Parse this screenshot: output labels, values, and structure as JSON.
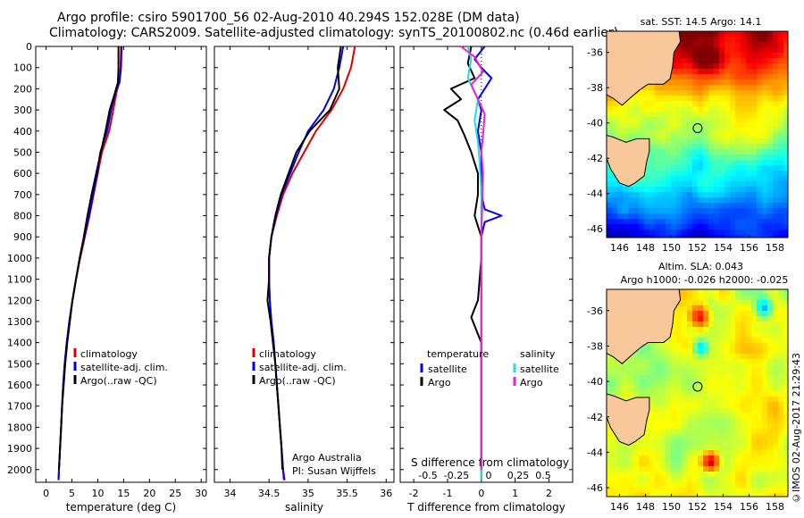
{
  "header": {
    "line1": "Argo profile: csiro 5901700_56 02-Aug-2010 40.294S 152.028E (DM data)",
    "line2": "Climatology: CARS2009. Satellite-adjusted climatology: synTS_20100802.nc (0.46d earlier)"
  },
  "credit": "©IMOS 02-Aug-2017 21:29:43",
  "colors": {
    "climatology": "#dd0000",
    "satellite": "#0000ee",
    "argo": "#000000",
    "sal_satellite": "#22dddd",
    "sal_argo": "#ee22cc",
    "land": "#f9c89a"
  },
  "chart_data": [
    {
      "type": "line",
      "id": "temperature",
      "xlabel": "temperature (deg C)",
      "xlim": [
        -2,
        31
      ],
      "xticks": [
        0,
        5,
        10,
        15,
        20,
        25,
        30
      ],
      "ylim": [
        2060,
        0
      ],
      "yticks": [
        0,
        100,
        200,
        300,
        400,
        500,
        600,
        700,
        800,
        900,
        1000,
        1100,
        1200,
        1300,
        1400,
        1500,
        1600,
        1700,
        1800,
        1900,
        2000
      ],
      "legend": [
        "climatology",
        "satellite-adj. clim.",
        "Argo(..raw -QC)"
      ],
      "series": [
        {
          "name": "climatology",
          "color": "#dd0000",
          "points": [
            [
              14.5,
              0
            ],
            [
              14.4,
              100
            ],
            [
              14.1,
              170
            ],
            [
              13.6,
              220
            ],
            [
              13.0,
              300
            ],
            [
              12.2,
              400
            ],
            [
              10.8,
              500
            ],
            [
              10.0,
              600
            ],
            [
              9.2,
              700
            ],
            [
              8.4,
              800
            ],
            [
              7.5,
              900
            ],
            [
              6.6,
              1000
            ],
            [
              5.8,
              1100
            ],
            [
              5.1,
              1200
            ],
            [
              4.5,
              1300
            ],
            [
              4.0,
              1400
            ],
            [
              3.6,
              1500
            ],
            [
              3.3,
              1600
            ],
            [
              3.1,
              1700
            ],
            [
              2.9,
              1800
            ],
            [
              2.7,
              1900
            ],
            [
              2.5,
              2000
            ],
            [
              2.4,
              2050
            ]
          ]
        },
        {
          "name": "satellite-adj. clim.",
          "color": "#0000ee",
          "points": [
            [
              14.6,
              0
            ],
            [
              14.5,
              100
            ],
            [
              14.2,
              170
            ],
            [
              13.4,
              220
            ],
            [
              12.6,
              300
            ],
            [
              11.8,
              400
            ],
            [
              10.5,
              500
            ],
            [
              9.9,
              600
            ],
            [
              9.1,
              700
            ],
            [
              8.3,
              800
            ],
            [
              7.4,
              900
            ],
            [
              6.5,
              1000
            ],
            [
              5.8,
              1100
            ],
            [
              5.1,
              1200
            ],
            [
              4.5,
              1300
            ],
            [
              4.0,
              1400
            ],
            [
              3.6,
              1500
            ],
            [
              3.3,
              1600
            ],
            [
              3.1,
              1700
            ],
            [
              2.9,
              1800
            ],
            [
              2.7,
              1900
            ],
            [
              2.5,
              2000
            ],
            [
              2.4,
              2050
            ]
          ]
        },
        {
          "name": "Argo(..raw -QC)",
          "color": "#000000",
          "points": [
            [
              14.0,
              0
            ],
            [
              14.0,
              100
            ],
            [
              13.9,
              170
            ],
            [
              13.3,
              220
            ],
            [
              12.3,
              300
            ],
            [
              11.5,
              400
            ],
            [
              10.6,
              500
            ],
            [
              9.7,
              600
            ],
            [
              8.8,
              700
            ],
            [
              8.0,
              800
            ],
            [
              7.3,
              900
            ],
            [
              6.5,
              1000
            ],
            [
              5.8,
              1100
            ],
            [
              5.1,
              1200
            ],
            [
              4.6,
              1300
            ],
            [
              4.1,
              1400
            ],
            [
              3.7,
              1500
            ],
            [
              3.4,
              1600
            ],
            [
              3.1,
              1700
            ],
            [
              2.9,
              1800
            ],
            [
              2.7,
              1900
            ],
            [
              2.5,
              2000
            ]
          ]
        }
      ]
    },
    {
      "type": "line",
      "id": "salinity",
      "xlabel": "salinity",
      "xlim": [
        33.8,
        36.1
      ],
      "xticks": [
        34,
        34.5,
        35,
        35.5,
        36
      ],
      "ylim": [
        2060,
        0
      ],
      "legend": [
        "climatology",
        "satellite-adj. clim.",
        "Argo(..raw -QC)"
      ],
      "annotation": [
        "Argo Australia",
        "PI: Susan Wijffels"
      ],
      "series": [
        {
          "name": "climatology",
          "color": "#dd0000",
          "points": [
            [
              35.6,
              0
            ],
            [
              35.55,
              100
            ],
            [
              35.45,
              200
            ],
            [
              35.3,
              300
            ],
            [
              35.1,
              400
            ],
            [
              34.95,
              500
            ],
            [
              34.8,
              600
            ],
            [
              34.68,
              700
            ],
            [
              34.6,
              800
            ],
            [
              34.53,
              900
            ],
            [
              34.5,
              1000
            ],
            [
              34.5,
              1100
            ],
            [
              34.51,
              1200
            ],
            [
              34.53,
              1300
            ],
            [
              34.56,
              1400
            ],
            [
              34.58,
              1500
            ],
            [
              34.6,
              1600
            ],
            [
              34.62,
              1700
            ],
            [
              34.64,
              1800
            ],
            [
              34.66,
              1900
            ],
            [
              34.68,
              2000
            ],
            [
              34.7,
              2050
            ]
          ]
        },
        {
          "name": "satellite-adj. clim.",
          "color": "#0000ee",
          "points": [
            [
              35.45,
              0
            ],
            [
              35.4,
              100
            ],
            [
              35.33,
              200
            ],
            [
              35.2,
              300
            ],
            [
              35.0,
              400
            ],
            [
              34.88,
              500
            ],
            [
              34.77,
              600
            ],
            [
              34.66,
              700
            ],
            [
              34.59,
              800
            ],
            [
              34.53,
              900
            ],
            [
              34.5,
              1000
            ],
            [
              34.5,
              1100
            ],
            [
              34.51,
              1200
            ],
            [
              34.53,
              1300
            ],
            [
              34.56,
              1400
            ],
            [
              34.58,
              1500
            ],
            [
              34.6,
              1600
            ],
            [
              34.62,
              1700
            ],
            [
              34.64,
              1800
            ],
            [
              34.66,
              1900
            ],
            [
              34.68,
              2000
            ],
            [
              34.69,
              2050
            ]
          ]
        },
        {
          "name": "Argo(..raw -QC)",
          "color": "#000000",
          "points": [
            [
              35.42,
              0
            ],
            [
              35.38,
              100
            ],
            [
              35.4,
              200
            ],
            [
              35.28,
              300
            ],
            [
              35.02,
              400
            ],
            [
              34.85,
              500
            ],
            [
              34.75,
              600
            ],
            [
              34.65,
              700
            ],
            [
              34.58,
              800
            ],
            [
              34.53,
              900
            ],
            [
              34.5,
              1000
            ],
            [
              34.5,
              1100
            ],
            [
              34.48,
              1200
            ],
            [
              34.52,
              1300
            ],
            [
              34.55,
              1400
            ],
            [
              34.58,
              1500
            ],
            [
              34.6,
              1600
            ],
            [
              34.62,
              1700
            ],
            [
              34.64,
              1800
            ],
            [
              34.66,
              1900
            ],
            [
              34.67,
              2000
            ]
          ]
        }
      ]
    },
    {
      "type": "line",
      "id": "difference",
      "xlabel": "T difference from climatology",
      "xlabel2": "S difference from climatology",
      "xlim": [
        -2.4,
        2.7
      ],
      "xticks": [
        -2,
        -1,
        0,
        1,
        2
      ],
      "xticks2": [
        -0.5,
        -0.25,
        0,
        0.25,
        0.5
      ],
      "ylim": [
        2060,
        0
      ],
      "legend_temperature": "temperature",
      "legend_salinity": "salinity",
      "legend_entries": [
        "satellite",
        "Argo"
      ],
      "series": [
        {
          "name": "satellite",
          "group": "temperature",
          "color": "#0000ee",
          "points": [
            [
              0.1,
              0
            ],
            [
              -0.2,
              60
            ],
            [
              0.0,
              100
            ],
            [
              0.3,
              150
            ],
            [
              0.1,
              200
            ],
            [
              -0.1,
              250
            ],
            [
              0.0,
              300
            ],
            [
              -0.1,
              400
            ],
            [
              0.0,
              500
            ],
            [
              0.0,
              600
            ],
            [
              0.0,
              700
            ],
            [
              0.1,
              770
            ],
            [
              0.6,
              800
            ],
            [
              0.1,
              830
            ],
            [
              0.0,
              900
            ],
            [
              0.0,
              1000
            ],
            [
              0.0,
              1200
            ],
            [
              0.0,
              1500
            ],
            [
              0.0,
              2050
            ]
          ]
        },
        {
          "name": "Argo",
          "group": "temperature",
          "color": "#000000",
          "points": [
            [
              -0.3,
              0
            ],
            [
              -0.4,
              80
            ],
            [
              -0.2,
              150
            ],
            [
              -0.9,
              200
            ],
            [
              -0.6,
              250
            ],
            [
              -1.1,
              300
            ],
            [
              -0.7,
              350
            ],
            [
              -0.5,
              420
            ],
            [
              -0.3,
              500
            ],
            [
              -0.1,
              600
            ],
            [
              -0.1,
              700
            ],
            [
              -0.2,
              800
            ],
            [
              0.0,
              900
            ],
            [
              0.0,
              1000
            ],
            [
              -0.1,
              1200
            ],
            [
              -0.3,
              1280
            ],
            [
              0.0,
              1400
            ],
            [
              0.0,
              1600
            ],
            [
              0.0,
              2000
            ]
          ]
        },
        {
          "name": "satellite",
          "group": "salinity",
          "color": "#22dddd",
          "points": [
            [
              -0.4,
              0
            ],
            [
              -0.3,
              60
            ],
            [
              -0.4,
              150
            ],
            [
              -0.1,
              250
            ],
            [
              -0.2,
              350
            ],
            [
              -0.1,
              450
            ],
            [
              -0.05,
              550
            ],
            [
              0.0,
              700
            ],
            [
              0.0,
              900
            ],
            [
              0.0,
              1200
            ],
            [
              0.0,
              1600
            ],
            [
              0.0,
              2050
            ]
          ]
        },
        {
          "name": "Argo",
          "group": "salinity",
          "color": "#ee22cc",
          "points": [
            [
              -0.6,
              0
            ],
            [
              -0.2,
              50
            ],
            [
              0.05,
              120
            ],
            [
              -0.3,
              180
            ],
            [
              -0.1,
              250
            ],
            [
              0.1,
              320
            ],
            [
              0.05,
              420
            ],
            [
              0.0,
              500
            ],
            [
              0.05,
              600
            ],
            [
              0.0,
              900
            ],
            [
              0.0,
              1200
            ],
            [
              0.0,
              1600
            ],
            [
              0.0,
              2000
            ]
          ]
        }
      ]
    },
    {
      "type": "heatmap",
      "id": "sst-map",
      "title": "sat. SST: 14.5 Argo: 14.1",
      "xticks": [
        146,
        148,
        150,
        152,
        154,
        156,
        158
      ],
      "yticks": [
        -36,
        -38,
        -40,
        -42,
        -44,
        -46
      ],
      "xlim": [
        145,
        159
      ],
      "ylim": [
        -46.5,
        -34.8
      ],
      "profile_lonlat": [
        152.028,
        -40.294
      ]
    },
    {
      "type": "heatmap",
      "id": "sla-map",
      "title": "Altim. SLA: 0.043",
      "subtitle": "Argo h1000: -0.026 h2000: -0.025",
      "xticks": [
        146,
        148,
        150,
        152,
        154,
        156,
        158
      ],
      "yticks": [
        -36,
        -38,
        -40,
        -42,
        -44,
        -46
      ],
      "xlim": [
        145,
        159
      ],
      "ylim": [
        -46.5,
        -34.8
      ],
      "profile_lonlat": [
        152.028,
        -40.294
      ]
    }
  ]
}
